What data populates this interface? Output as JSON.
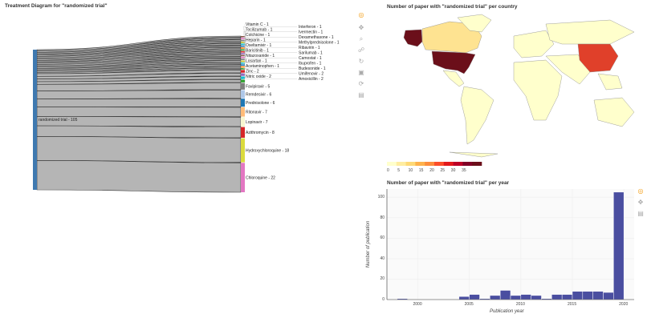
{
  "sankey": {
    "title": "Treatment Diagram for \"randomized trial\"",
    "source": {
      "label": "randomized trial - 105",
      "color": "#3f79b0"
    },
    "targets": [
      {
        "label": "Vitamin C - 1",
        "value": 1,
        "color": "#8c564b"
      },
      {
        "label": "Interferon - 1",
        "value": 1,
        "color": "#e377c2"
      },
      {
        "label": "Tocilizumab - 1",
        "value": 1,
        "color": "#7f7f7f"
      },
      {
        "label": "Ivermectin - 1",
        "value": 1,
        "color": "#bcbd22"
      },
      {
        "label": "Colchicine - 1",
        "value": 1,
        "color": "#17becf"
      },
      {
        "label": "Dexamethasone - 1",
        "value": 1,
        "color": "#1f77b4"
      },
      {
        "label": "Heparin - 1",
        "value": 1,
        "color": "#ff7f0e"
      },
      {
        "label": "Methylprednisolone - 1",
        "value": 1,
        "color": "#2ca02c"
      },
      {
        "label": "Oseltamivir - 1",
        "value": 1,
        "color": "#d62728"
      },
      {
        "label": "Ribavirin - 1",
        "value": 1,
        "color": "#9467bd"
      },
      {
        "label": "Baricitinib - 1",
        "value": 1,
        "color": "#8c564b"
      },
      {
        "label": "Sarilumab - 1",
        "value": 1,
        "color": "#e377c2"
      },
      {
        "label": "Nitazoxanide - 1",
        "value": 1,
        "color": "#7f7f7f"
      },
      {
        "label": "Camostat - 1",
        "value": 1,
        "color": "#bcbd22"
      },
      {
        "label": "Losartan - 1",
        "value": 1,
        "color": "#17becf"
      },
      {
        "label": "Ibuprofen - 1",
        "value": 1,
        "color": "#1f77b4"
      },
      {
        "label": "Acetaminophen - 1",
        "value": 1,
        "color": "#ff7f0e"
      },
      {
        "label": "Budesonide - 1",
        "value": 1,
        "color": "#2ca02c"
      },
      {
        "label": "Zinc - 2",
        "value": 2,
        "color": "#d62728"
      },
      {
        "label": "Umifenovir - 2",
        "value": 2,
        "color": "#9467bd"
      },
      {
        "label": "Nitric oxide - 2",
        "value": 2,
        "color": "#17becf"
      },
      {
        "label": "Amoxicillin - 2",
        "value": 2,
        "color": "#2ca02c"
      },
      {
        "label": "Favipiravir - 5",
        "value": 5,
        "color": "#7f7f7f"
      },
      {
        "label": "Remdesivir - 6",
        "value": 6,
        "color": "#aec7e8"
      },
      {
        "label": "Prednisolone - 6",
        "value": 6,
        "color": "#1f77b4"
      },
      {
        "label": "Ritonavir - 7",
        "value": 7,
        "color": "#ffbb78"
      },
      {
        "label": "Lopinavir - 7",
        "value": 7,
        "color": "#f7f7d0"
      },
      {
        "label": "Azithromycin - 8",
        "value": 8,
        "color": "#d62728"
      },
      {
        "label": "Hydroxychloroquine - 18",
        "value": 18,
        "color": "#dbdb3d"
      },
      {
        "label": "Chloroquine - 22",
        "value": 22,
        "color": "#e377c2"
      }
    ]
  },
  "map": {
    "title": "Number of paper with \"randomized trial\" per country",
    "colorbar": {
      "ticks": [
        "0",
        "5",
        "10",
        "15",
        "20",
        "25",
        "30",
        "35"
      ],
      "colors": [
        "#ffffcc",
        "#ffeda0",
        "#fed976",
        "#feb24c",
        "#fd8d3c",
        "#fc4e2a",
        "#e31a1c",
        "#bd0026",
        "#800026",
        "#6b0f1a"
      ]
    },
    "highlighted": {
      "United States": "#6b0f1a",
      "China": "#e0402a",
      "Canada": "#fee391"
    },
    "default_color": "#ffffcc"
  },
  "chart_data": {
    "type": "bar",
    "title": "Number of paper with \"randomized trial\" per year",
    "xlabel": "Publication year",
    "ylabel": "Number of publication",
    "x": [
      1998,
      2004,
      2005,
      2006,
      2007,
      2008,
      2009,
      2010,
      2011,
      2012,
      2013,
      2014,
      2015,
      2016,
      2017,
      2018,
      2019
    ],
    "values": [
      1,
      3,
      5,
      1,
      4,
      9,
      4,
      5,
      4,
      1,
      5,
      5,
      8,
      8,
      8,
      7,
      105
    ],
    "xticks": [
      "2000",
      "2005",
      "2010",
      "2015",
      "2020"
    ],
    "yticks": [
      "0",
      "20",
      "40",
      "60",
      "80",
      "100"
    ],
    "xlim": [
      1997,
      2021
    ],
    "ylim": [
      0,
      108
    ],
    "bar_color": "#4a4ea0",
    "grid": true
  }
}
